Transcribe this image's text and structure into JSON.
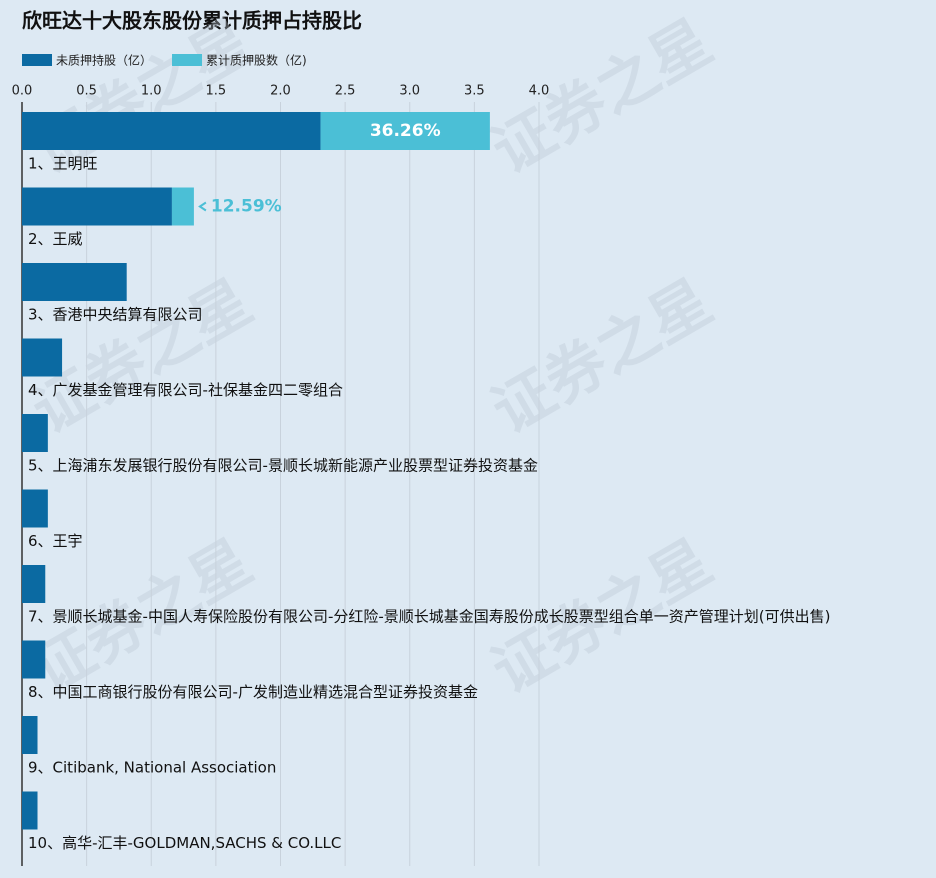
{
  "chart_data": {
    "type": "stacked_barh",
    "title": "欣旺达十大股东股份累计质押占持股比",
    "watermark": "证券之星",
    "categories": [
      "1、王明旺",
      "2、王威",
      "3、香港中央结算有限公司",
      "4、广发基金管理有限公司-社保基金四二零组合",
      "5、上海浦东发展银行股份有限公司-景顺长城新能源产业股票型证券投资基金",
      "6、王宇",
      "7、景顺长城基金-中国人寿保险股份有限公司-分红险-景顺长城基金国寿股份成长股票型组合单一资产管理计划(可供出售)",
      "8、中国工商银行股份有限公司-广发制造业精选混合型证券投资基金",
      "9、Citibank, National Association",
      "10、高华-汇丰-GOLDMAN,SACHS & CO.LLC"
    ],
    "series": [
      {
        "name": "未质押持股（亿）",
        "color": "#0b6aa2",
        "values": [
          2.31,
          1.16,
          0.81,
          0.31,
          0.2,
          0.2,
          0.18,
          0.18,
          0.12,
          0.12
        ]
      },
      {
        "name": "累计质押股数（亿)",
        "color": "#4bbfd6",
        "values": [
          1.31,
          0.17,
          0,
          0,
          0,
          0,
          0,
          0,
          0,
          0
        ]
      }
    ],
    "pledge_ratio": [
      36.26,
      12.59,
      null,
      null,
      null,
      null,
      null,
      null,
      null,
      null
    ],
    "pledge_ratio_labels": [
      "36.26%",
      "12.59%",
      null,
      null,
      null,
      null,
      null,
      null,
      null,
      null
    ],
    "xlim": [
      0,
      4
    ],
    "xticks": [
      {
        "value": 0,
        "label": "0.0"
      },
      0.5,
      {
        "value": 1,
        "label": "1.0"
      },
      1.5,
      {
        "value": 2,
        "label": "2.0"
      },
      2.5,
      {
        "value": 3,
        "label": "3.0"
      },
      3.5,
      {
        "value": 4,
        "label": "4.0"
      }
    ],
    "grid": true
  }
}
